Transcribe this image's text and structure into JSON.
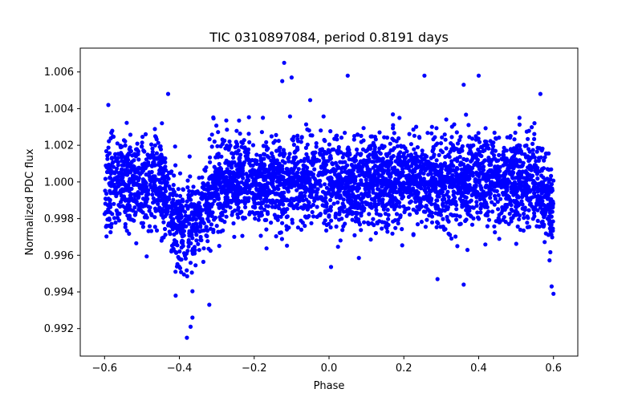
{
  "chart_data": {
    "type": "scatter",
    "title": "TIC 0310897084, period 0.8191 days",
    "xlabel": "Phase",
    "ylabel": "Normalized PDC flux",
    "xlim": [
      -0.665,
      0.665
    ],
    "ylim": [
      0.9905,
      1.0073
    ],
    "xticks": [
      -0.6,
      -0.4,
      -0.2,
      0.0,
      0.2,
      0.4,
      0.6
    ],
    "xtick_labels": [
      "−0.6",
      "−0.4",
      "−0.2",
      "0.0",
      "0.2",
      "0.4",
      "0.6"
    ],
    "yticks": [
      0.992,
      0.994,
      0.996,
      0.998,
      1.0,
      1.002,
      1.004,
      1.006
    ],
    "ytick_labels": [
      "0.992",
      "0.994",
      "0.996",
      "0.998",
      "1.000",
      "1.002",
      "1.004",
      "1.006"
    ],
    "grid": false,
    "marker_color": "#0000ff",
    "series": [
      {
        "marker": "circle",
        "color": "#0000ff",
        "x_range": [
          -0.6,
          0.6
        ],
        "baseline": 1.0,
        "scatter_sd": 0.0012,
        "transit": {
          "phase_center": -0.38,
          "half_width": 0.07,
          "depth": 0.0022
        },
        "edge_dips": [
          {
            "phase_center": 0.6,
            "half_width": 0.04,
            "depth": 0.0012
          },
          {
            "phase_center": -0.6,
            "half_width": 0.02,
            "depth": 0.0004
          }
        ],
        "outliers": [
          {
            "x": -0.12,
            "y": 1.0065
          },
          {
            "x": -0.125,
            "y": 1.0055
          },
          {
            "x": -0.1,
            "y": 1.0057
          },
          {
            "x": 0.05,
            "y": 1.0058
          },
          {
            "x": 0.255,
            "y": 1.0058
          },
          {
            "x": 0.4,
            "y": 1.0058
          },
          {
            "x": 0.36,
            "y": 1.0053
          },
          {
            "x": 0.565,
            "y": 1.0048
          },
          {
            "x": -0.43,
            "y": 1.0048
          },
          {
            "x": -0.59,
            "y": 1.0042
          },
          {
            "x": -0.38,
            "y": 0.9915
          },
          {
            "x": -0.37,
            "y": 0.9921
          },
          {
            "x": -0.365,
            "y": 0.9926
          },
          {
            "x": -0.32,
            "y": 0.9933
          },
          {
            "x": 0.29,
            "y": 0.9947
          },
          {
            "x": 0.36,
            "y": 0.9944
          },
          {
            "x": 0.6,
            "y": 0.9939
          },
          {
            "x": 0.595,
            "y": 0.9943
          },
          {
            "x": -0.41,
            "y": 0.9938
          }
        ]
      }
    ]
  }
}
